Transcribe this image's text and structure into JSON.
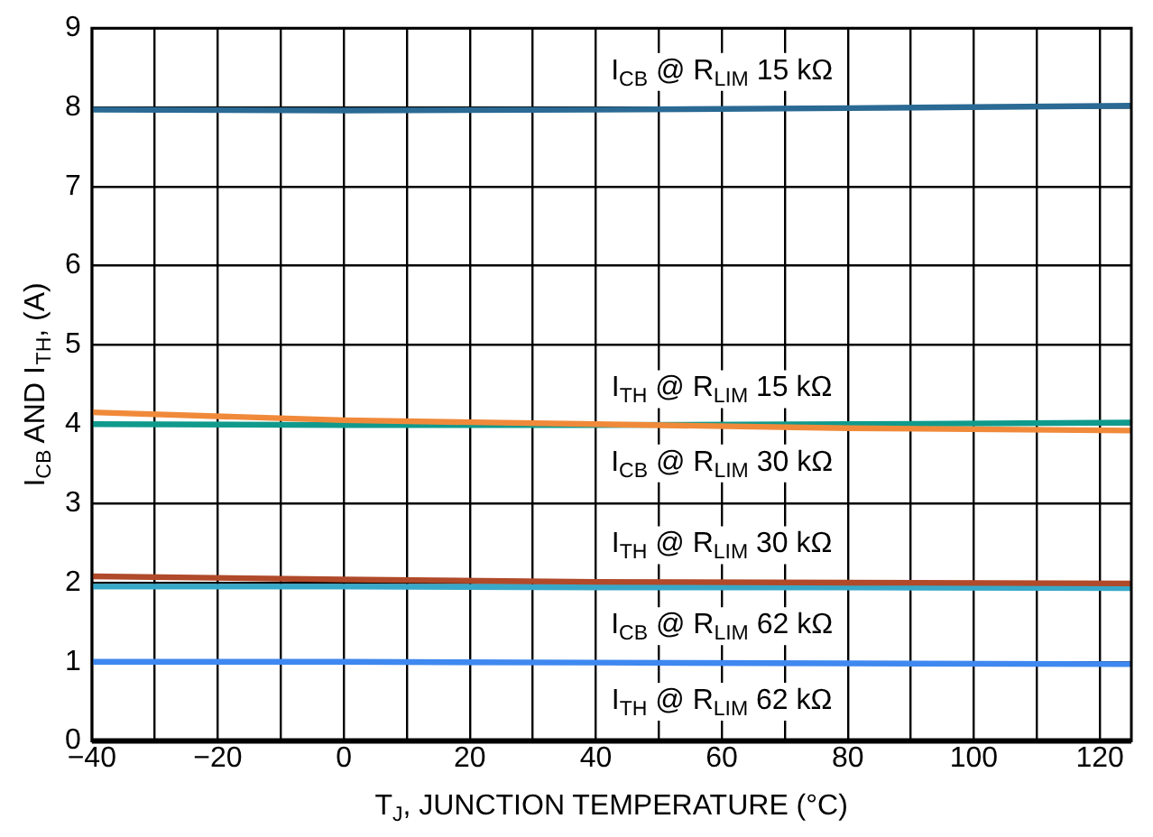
{
  "chart_data": {
    "type": "line",
    "xlabel": "T$_{J}$, JUNCTION TEMPERATURE (°C)",
    "ylabel": "I$_{CB}$ AND I$_{TH}$, (A)",
    "x": [
      -40,
      0,
      40,
      80,
      125
    ],
    "series": [
      {
        "name": "I$_{CB}$ @ R$_{LIM}$ 15 kΩ",
        "color": "#2a6a94",
        "values": [
          7.97,
          7.96,
          7.97,
          7.99,
          8.02
        ]
      },
      {
        "name": "I$_{TH}$ @ R$_{LIM}$ 15 kΩ",
        "color": "#f08a3a",
        "values": [
          4.15,
          4.05,
          4.0,
          3.95,
          3.92
        ]
      },
      {
        "name": "I$_{CB}$ @ R$_{LIM}$ 30 kΩ",
        "color": "#109a8c",
        "values": [
          4.0,
          3.99,
          3.99,
          4.0,
          4.02
        ]
      },
      {
        "name": "I$_{TH}$ @ R$_{LIM}$ 30 kΩ",
        "color": "#b04a2a",
        "values": [
          2.08,
          2.04,
          2.01,
          2.0,
          1.99
        ]
      },
      {
        "name": "I$_{CB}$ @ R$_{LIM}$ 62 kΩ",
        "color": "#38a8c8",
        "values": [
          1.95,
          1.95,
          1.94,
          1.94,
          1.93
        ]
      },
      {
        "name": "I$_{TH}$ @ R$_{LIM}$ 62 kΩ",
        "color": "#3f88f0",
        "values": [
          1.0,
          1.0,
          0.99,
          0.98,
          0.97
        ]
      }
    ],
    "xlim": [
      -40,
      125
    ],
    "xticks": [
      {
        "value": -40,
        "label": "−40"
      },
      {
        "value": -30,
        "label": null
      },
      {
        "value": -20,
        "label": "−20"
      },
      {
        "value": -10,
        "label": null
      },
      0,
      {
        "value": 10,
        "label": null
      },
      20,
      {
        "value": 30,
        "label": null
      },
      40,
      {
        "value": 50,
        "label": null
      },
      60,
      {
        "value": 70,
        "label": null
      },
      80,
      {
        "value": 90,
        "label": null
      },
      100,
      {
        "value": 110,
        "label": null
      },
      120
    ],
    "ylim": [
      0,
      9
    ],
    "yticks": [
      0,
      1,
      2,
      3,
      4,
      5,
      6,
      7,
      8,
      9
    ],
    "grid": true,
    "legend": false,
    "marker": "none",
    "line_style": "solid"
  }
}
